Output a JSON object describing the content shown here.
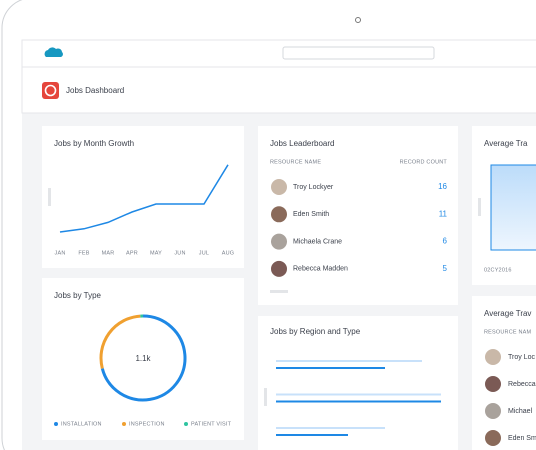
{
  "header": {
    "title": "Jobs Dashboard"
  },
  "month_growth": {
    "title": "Jobs by Month Growth",
    "categories": [
      "JAN",
      "FEB",
      "MAR",
      "APR",
      "MAY",
      "JUN",
      "JUL",
      "AUG"
    ],
    "values": [
      10,
      14,
      22,
      35,
      45,
      45,
      45,
      94
    ],
    "ylim": [
      0,
      100
    ],
    "color": "#1e88e5"
  },
  "jobs_by_type": {
    "title": "Jobs by Type",
    "center_label": "1.1k",
    "series": [
      {
        "name": "INSTALLATION",
        "color": "#1e88e5",
        "value": 71
      },
      {
        "name": "INSPECTION",
        "color": "#f0a030",
        "value": 28
      },
      {
        "name": "PATIENT VISIT",
        "color": "#2ec4a0",
        "value": 1
      }
    ]
  },
  "leaderboard": {
    "title": "Jobs Leaderboard",
    "columns": [
      "RESOURCE NAME",
      "RECORD COUNT"
    ],
    "rows": [
      {
        "name": "Troy Lockyer",
        "count": 16
      },
      {
        "name": "Eden Smith",
        "count": 11
      },
      {
        "name": "Michaela Crane",
        "count": 6
      },
      {
        "name": "Rebecca Madden",
        "count": 5
      }
    ]
  },
  "region_type": {
    "title": "Jobs by Region and Type",
    "xlim": [
      0,
      180
    ],
    "series": [
      {
        "color": "#c8e1fa",
        "values": [
          146,
          165,
          109
        ]
      },
      {
        "color": "#1e88e5",
        "values": [
          109,
          165,
          72
        ]
      }
    ]
  },
  "travel_chart": {
    "title": "Average Tra",
    "x_label": "02CY2016",
    "values": [
      85,
      85,
      85
    ],
    "ylim": [
      0,
      100
    ]
  },
  "travel_list": {
    "title": "Average Trav",
    "column": "RESOURCE NAM",
    "rows": [
      "Troy Loc",
      "Rebecca",
      "Michael",
      "Eden Sm"
    ]
  }
}
